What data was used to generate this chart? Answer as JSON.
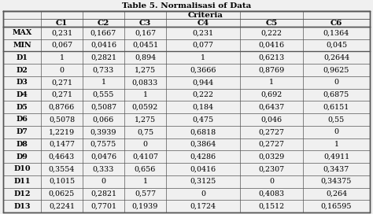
{
  "title": "Table 5. Normalisasi of Data",
  "criteria_label": "Criteria",
  "col_labels": [
    "",
    "C1",
    "C2",
    "C3",
    "C4",
    "C5",
    "C6"
  ],
  "rows": [
    [
      "MAX",
      "0,231",
      "0,1667",
      "0,167",
      "0,231",
      "0,222",
      "0,1364"
    ],
    [
      "MIN",
      "0,067",
      "0,0416",
      "0,0451",
      "0,077",
      "0,0416",
      "0,045"
    ],
    [
      "D1",
      "1",
      "0,2821",
      "0,894",
      "1",
      "0,6213",
      "0,2644"
    ],
    [
      "D2",
      "0",
      "0,733",
      "1,275",
      "0,3666",
      "0,8769",
      "0,9625"
    ],
    [
      "D3",
      "0,271",
      "1",
      "0,0833",
      "0,944",
      "1",
      "0"
    ],
    [
      "D4",
      "0,271",
      "0,555",
      "1",
      "0,222",
      "0,692",
      "0,6875"
    ],
    [
      "D5",
      "0,8766",
      "0,5087",
      "0,0592",
      "0,184",
      "0,6437",
      "0,6151"
    ],
    [
      "D6",
      "0,5078",
      "0,066",
      "1,275",
      "0,475",
      "0,046",
      "0,55"
    ],
    [
      "D7",
      "1,2219",
      "0,3939",
      "0,75",
      "0,6818",
      "0,2727",
      "0"
    ],
    [
      "D8",
      "0,1477",
      "0,7575",
      "0",
      "0,3864",
      "0,2727",
      "1"
    ],
    [
      "D9",
      "0,4643",
      "0,0476",
      "0,4107",
      "0,4286",
      "0,0329",
      "0,4911"
    ],
    [
      "D10",
      "0,3554",
      "0,333",
      "0,656",
      "0,0416",
      "0,2307",
      "0,3437"
    ],
    [
      "D11",
      "0,1015",
      "0",
      "1",
      "0,3125",
      "0",
      "0,34375"
    ],
    [
      "D12",
      "0,0625",
      "0,2821",
      "0,577",
      "0",
      "0,4083",
      "0,264"
    ],
    [
      "D13",
      "0,2241",
      "0,7701",
      "0,1939",
      "0,1724",
      "0,1512",
      "0,16595"
    ]
  ],
  "bg_color": "#f0f0f0",
  "text_color": "#000000",
  "line_color": "#555555",
  "title_fontsize": 7.5,
  "header_fontsize": 7.5,
  "cell_fontsize": 6.8,
  "fig_width": 4.74,
  "fig_height": 2.72,
  "dpi": 100
}
